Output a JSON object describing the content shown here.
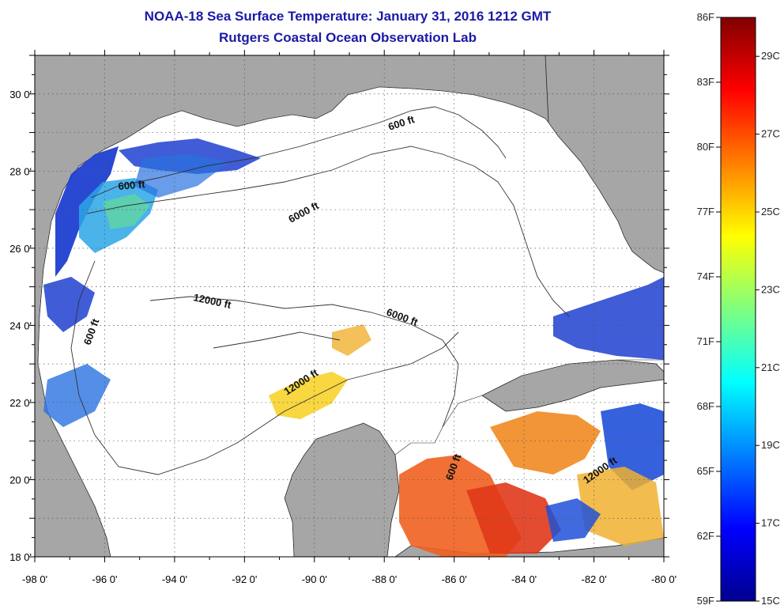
{
  "title": "NOAA-18 Sea Surface Temperature:  January 31, 2016 1212 GMT",
  "subtitle": "Rutgers Coastal Ocean Observation Lab",
  "map": {
    "lon_ticks": [
      "-98 0'",
      "-96 0'",
      "-94 0'",
      "-92 0'",
      "-90 0'",
      "-88 0'",
      "-86 0'",
      "-84 0'",
      "-82 0'",
      "-80 0'"
    ],
    "lat_ticks": [
      "30 0'",
      "28 0'",
      "26 0'",
      "24 0'",
      "22 0'",
      "20 0'",
      "18 0'"
    ],
    "lon_range": [
      -98,
      -80
    ],
    "lat_range": [
      18,
      31
    ],
    "contour_labels": [
      "600 ft",
      "600 ft",
      "6000 ft",
      "12000 ft",
      "6000 ft",
      "600 ft",
      "12000 ft",
      "600 ft",
      "12000 ft"
    ],
    "colors": {
      "land": "#a6a6a6",
      "cloud": "#ffffff",
      "grid": "#555555"
    }
  },
  "colorbar": {
    "fahrenheit": [
      "86F",
      "83F",
      "80F",
      "77F",
      "74F",
      "71F",
      "68F",
      "65F",
      "62F",
      "59F"
    ],
    "celsius": [
      "29C",
      "27C",
      "25C",
      "23C",
      "21C",
      "19C",
      "17C",
      "15C"
    ],
    "range_f": [
      59,
      86
    ],
    "range_c": [
      15,
      30
    ]
  }
}
